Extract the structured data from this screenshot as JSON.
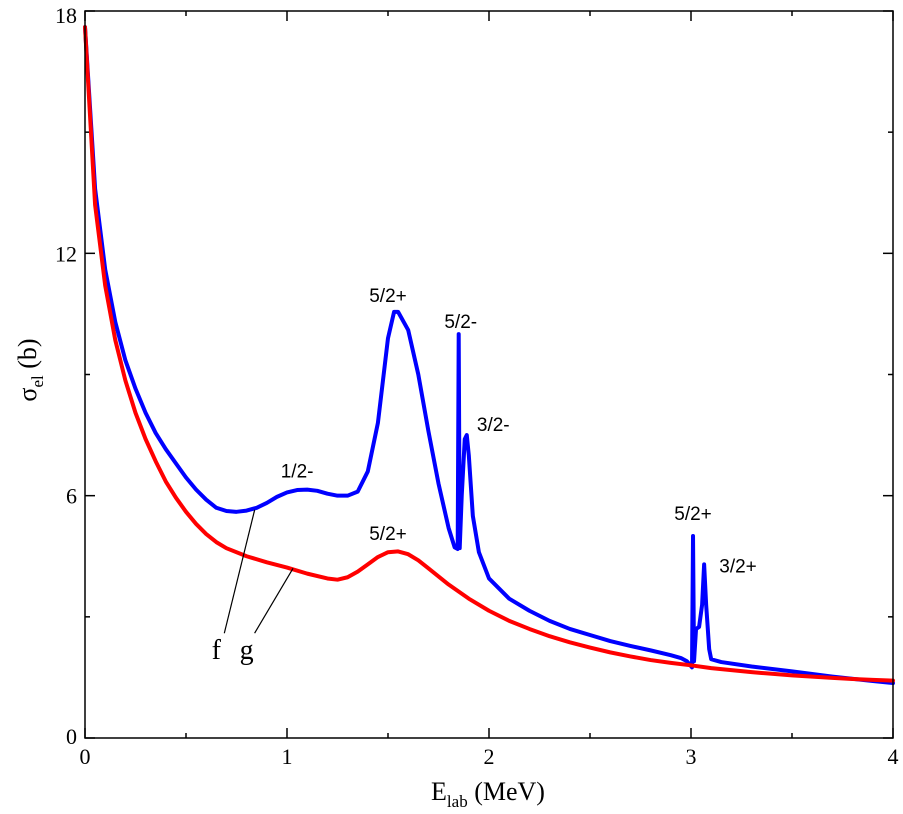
{
  "chart_data": {
    "type": "line",
    "title": "",
    "xlabel": {
      "main": "E",
      "sub": "lab",
      "unit": " (MeV)"
    },
    "ylabel": {
      "main": "σ",
      "sub": "el",
      "unit": " (b)"
    },
    "xlim": [
      0,
      4
    ],
    "ylim": [
      0,
      18
    ],
    "grid": false,
    "x_ticks": [
      0,
      1,
      2,
      3,
      4
    ],
    "x_tick_labels": [
      "0",
      "1",
      "2",
      "3",
      "4"
    ],
    "x_minor_step": 0.5,
    "y_ticks": [
      0,
      6,
      12,
      18
    ],
    "y_tick_labels": [
      "0",
      "6",
      "12",
      "18"
    ],
    "y_minor_step": 3,
    "series": [
      {
        "name": "f",
        "color": "#0000ff",
        "points": [
          [
            0.0,
            17.6
          ],
          [
            0.05,
            13.6
          ],
          [
            0.1,
            11.6
          ],
          [
            0.15,
            10.3
          ],
          [
            0.2,
            9.35
          ],
          [
            0.25,
            8.65
          ],
          [
            0.3,
            8.05
          ],
          [
            0.35,
            7.55
          ],
          [
            0.4,
            7.15
          ],
          [
            0.45,
            6.8
          ],
          [
            0.5,
            6.45
          ],
          [
            0.55,
            6.15
          ],
          [
            0.6,
            5.9
          ],
          [
            0.65,
            5.7
          ],
          [
            0.7,
            5.62
          ],
          [
            0.75,
            5.6
          ],
          [
            0.8,
            5.63
          ],
          [
            0.85,
            5.7
          ],
          [
            0.9,
            5.82
          ],
          [
            0.95,
            5.97
          ],
          [
            1.0,
            6.08
          ],
          [
            1.05,
            6.14
          ],
          [
            1.1,
            6.15
          ],
          [
            1.15,
            6.12
          ],
          [
            1.2,
            6.05
          ],
          [
            1.25,
            6.0
          ],
          [
            1.3,
            6.0
          ],
          [
            1.35,
            6.1
          ],
          [
            1.4,
            6.6
          ],
          [
            1.45,
            7.8
          ],
          [
            1.5,
            9.9
          ],
          [
            1.53,
            10.55
          ],
          [
            1.55,
            10.55
          ],
          [
            1.6,
            10.1
          ],
          [
            1.65,
            9.0
          ],
          [
            1.7,
            7.6
          ],
          [
            1.75,
            6.3
          ],
          [
            1.8,
            5.2
          ],
          [
            1.83,
            4.72
          ],
          [
            1.845,
            4.68
          ],
          [
            1.85,
            10.0
          ],
          [
            1.855,
            4.7
          ],
          [
            1.865,
            6.0
          ],
          [
            1.88,
            7.4
          ],
          [
            1.89,
            7.5
          ],
          [
            1.9,
            7.0
          ],
          [
            1.92,
            5.5
          ],
          [
            1.95,
            4.6
          ],
          [
            2.0,
            3.95
          ],
          [
            2.1,
            3.45
          ],
          [
            2.2,
            3.15
          ],
          [
            2.3,
            2.9
          ],
          [
            2.4,
            2.7
          ],
          [
            2.5,
            2.55
          ],
          [
            2.6,
            2.4
          ],
          [
            2.7,
            2.28
          ],
          [
            2.8,
            2.17
          ],
          [
            2.9,
            2.05
          ],
          [
            2.95,
            1.98
          ],
          [
            2.98,
            1.9
          ],
          [
            3.005,
            1.75
          ],
          [
            3.01,
            5.0
          ],
          [
            3.015,
            1.9
          ],
          [
            3.025,
            2.7
          ],
          [
            3.04,
            2.75
          ],
          [
            3.055,
            3.3
          ],
          [
            3.065,
            4.3
          ],
          [
            3.075,
            3.3
          ],
          [
            3.09,
            2.2
          ],
          [
            3.1,
            1.95
          ],
          [
            3.15,
            1.88
          ],
          [
            3.3,
            1.77
          ],
          [
            3.5,
            1.65
          ],
          [
            3.7,
            1.52
          ],
          [
            3.9,
            1.41
          ],
          [
            4.0,
            1.36
          ]
        ]
      },
      {
        "name": "g",
        "color": "#ff0000",
        "points": [
          [
            0.0,
            17.6
          ],
          [
            0.05,
            13.2
          ],
          [
            0.1,
            11.2
          ],
          [
            0.15,
            9.85
          ],
          [
            0.2,
            8.85
          ],
          [
            0.25,
            8.05
          ],
          [
            0.3,
            7.4
          ],
          [
            0.35,
            6.85
          ],
          [
            0.4,
            6.35
          ],
          [
            0.45,
            5.95
          ],
          [
            0.5,
            5.6
          ],
          [
            0.55,
            5.3
          ],
          [
            0.6,
            5.05
          ],
          [
            0.65,
            4.85
          ],
          [
            0.7,
            4.7
          ],
          [
            0.8,
            4.5
          ],
          [
            0.9,
            4.35
          ],
          [
            1.0,
            4.22
          ],
          [
            1.1,
            4.07
          ],
          [
            1.2,
            3.95
          ],
          [
            1.25,
            3.92
          ],
          [
            1.3,
            3.98
          ],
          [
            1.35,
            4.12
          ],
          [
            1.4,
            4.3
          ],
          [
            1.45,
            4.48
          ],
          [
            1.5,
            4.6
          ],
          [
            1.55,
            4.62
          ],
          [
            1.6,
            4.55
          ],
          [
            1.65,
            4.4
          ],
          [
            1.7,
            4.2
          ],
          [
            1.8,
            3.8
          ],
          [
            1.9,
            3.45
          ],
          [
            2.0,
            3.15
          ],
          [
            2.1,
            2.9
          ],
          [
            2.2,
            2.7
          ],
          [
            2.3,
            2.52
          ],
          [
            2.4,
            2.37
          ],
          [
            2.5,
            2.24
          ],
          [
            2.6,
            2.12
          ],
          [
            2.7,
            2.02
          ],
          [
            2.8,
            1.93
          ],
          [
            2.9,
            1.86
          ],
          [
            3.0,
            1.8
          ],
          [
            3.1,
            1.73
          ],
          [
            3.2,
            1.68
          ],
          [
            3.3,
            1.63
          ],
          [
            3.4,
            1.59
          ],
          [
            3.5,
            1.55
          ],
          [
            3.6,
            1.52
          ],
          [
            3.7,
            1.49
          ],
          [
            3.8,
            1.46
          ],
          [
            3.9,
            1.44
          ],
          [
            4.0,
            1.42
          ]
        ]
      }
    ],
    "annotations": [
      {
        "text": "1/2-",
        "x": 1.05,
        "y": 6.45,
        "anchor": "middle"
      },
      {
        "text": "5/2+",
        "x": 1.5,
        "y": 10.8,
        "anchor": "middle"
      },
      {
        "text": "5/2-",
        "x": 1.86,
        "y": 10.15,
        "anchor": "middle"
      },
      {
        "text": "3/2-",
        "x": 1.94,
        "y": 7.6,
        "anchor": "start"
      },
      {
        "text": "5/2+",
        "x": 1.5,
        "y": 4.9,
        "anchor": "middle"
      },
      {
        "text": "5/2+",
        "x": 3.01,
        "y": 5.4,
        "anchor": "middle"
      },
      {
        "text": "3/2+",
        "x": 3.14,
        "y": 4.1,
        "anchor": "start"
      }
    ],
    "curve_labels": [
      {
        "text": "f",
        "x": 0.65,
        "y": 1.95,
        "line_to": [
          0.84,
          5.65
        ]
      },
      {
        "text": "g",
        "x": 0.8,
        "y": 1.95,
        "line_to": [
          1.03,
          4.2
        ]
      }
    ]
  }
}
